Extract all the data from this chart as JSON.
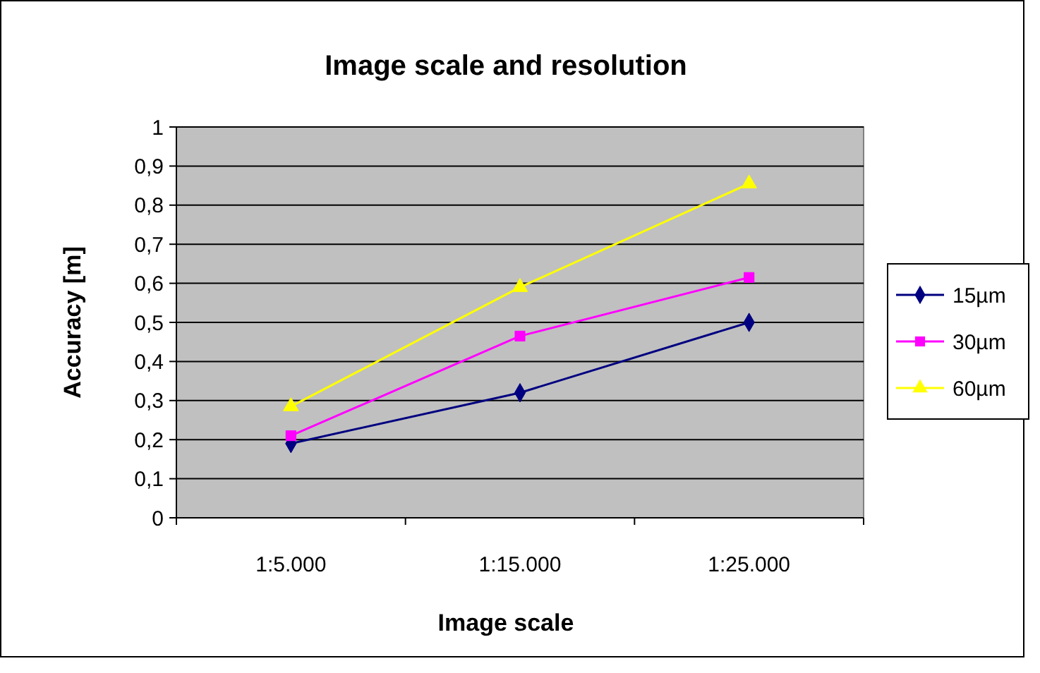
{
  "chart_data": {
    "type": "line",
    "title": "Image scale and resolution",
    "xlabel": "Image scale",
    "ylabel": "Accuracy [m]",
    "categories": [
      "1:5.000",
      "1:15.000",
      "1:25.000"
    ],
    "series": [
      {
        "name": "15µm",
        "color": "#000080",
        "marker": "diamond",
        "values": [
          0.19,
          0.32,
          0.5
        ]
      },
      {
        "name": "30µm",
        "color": "#ff00ff",
        "marker": "square",
        "values": [
          0.21,
          0.465,
          0.615
        ]
      },
      {
        "name": "60µm",
        "color": "#ffff00",
        "marker": "triangle",
        "values": [
          0.285,
          0.59,
          0.855
        ]
      }
    ],
    "ylim": [
      0,
      1
    ],
    "yticks": [
      0,
      {
        "value": 0.1,
        "label": "0,1"
      },
      {
        "value": 0.2,
        "label": "0,2"
      },
      {
        "value": 0.3,
        "label": "0,3"
      },
      {
        "value": 0.4,
        "label": "0,4"
      },
      {
        "value": 0.5,
        "label": "0,5"
      },
      {
        "value": 0.6,
        "label": "0,6"
      },
      {
        "value": 0.7,
        "label": "0,7"
      },
      {
        "value": 0.8,
        "label": "0,8"
      },
      {
        "value": 0.9,
        "label": "0,9"
      },
      1
    ],
    "grid": "y",
    "legend": "right",
    "line_style": "solid"
  }
}
